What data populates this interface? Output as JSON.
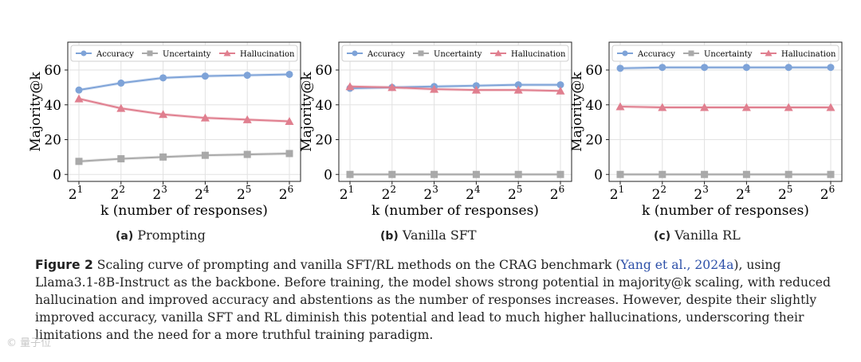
{
  "chart_data": [
    {
      "type": "line",
      "subcaption_tag": "(a)",
      "subcaption_text": "Prompting",
      "ylabel": "Majority@k",
      "xlabel": "k (number of responses)",
      "x_ticks": [
        "1",
        "2",
        "3",
        "4",
        "5",
        "6"
      ],
      "x_base": "2",
      "yticks": [
        0,
        20,
        40,
        60
      ],
      "ylim": [
        -4,
        76
      ],
      "grid": true,
      "legend_position": "top",
      "series": [
        {
          "name": "Accuracy",
          "color": "#7ea3d8",
          "marker": "circle",
          "values": [
            48.5,
            52.5,
            55.5,
            56.5,
            57,
            57.5
          ]
        },
        {
          "name": "Uncertainty",
          "color": "#a9a9a9",
          "marker": "square",
          "values": [
            7.5,
            9,
            10,
            11,
            11.5,
            12
          ]
        },
        {
          "name": "Hallucination",
          "color": "#e07f8f",
          "marker": "triangle",
          "values": [
            43.5,
            38,
            34.5,
            32.5,
            31.5,
            30.5
          ]
        }
      ]
    },
    {
      "type": "line",
      "subcaption_tag": "(b)",
      "subcaption_text": "Vanilla SFT",
      "ylabel": "Majority@k",
      "xlabel": "k (number of responses)",
      "x_ticks": [
        "1",
        "2",
        "3",
        "4",
        "5",
        "6"
      ],
      "x_base": "2",
      "yticks": [
        0,
        20,
        40,
        60
      ],
      "ylim": [
        -4,
        76
      ],
      "grid": true,
      "legend_position": "top",
      "series": [
        {
          "name": "Accuracy",
          "color": "#7ea3d8",
          "marker": "circle",
          "values": [
            49.5,
            50,
            50.5,
            51,
            51.5,
            51.5
          ]
        },
        {
          "name": "Uncertainty",
          "color": "#a9a9a9",
          "marker": "square",
          "values": [
            0,
            0,
            0,
            0,
            0,
            0
          ]
        },
        {
          "name": "Hallucination",
          "color": "#e07f8f",
          "marker": "triangle",
          "values": [
            50.5,
            50,
            49,
            48.5,
            48.5,
            48
          ]
        }
      ]
    },
    {
      "type": "line",
      "subcaption_tag": "(c)",
      "subcaption_text": "Vanilla RL",
      "ylabel": "Majority@k",
      "xlabel": "k (number of responses)",
      "x_ticks": [
        "1",
        "2",
        "3",
        "4",
        "5",
        "6"
      ],
      "x_base": "2",
      "yticks": [
        0,
        20,
        40,
        60
      ],
      "ylim": [
        -4,
        76
      ],
      "grid": true,
      "legend_position": "top",
      "series": [
        {
          "name": "Accuracy",
          "color": "#7ea3d8",
          "marker": "circle",
          "values": [
            61,
            61.5,
            61.5,
            61.5,
            61.5,
            61.5
          ]
        },
        {
          "name": "Uncertainty",
          "color": "#a9a9a9",
          "marker": "square",
          "values": [
            0,
            0,
            0,
            0,
            0,
            0
          ]
        },
        {
          "name": "Hallucination",
          "color": "#e07f8f",
          "marker": "triangle",
          "values": [
            39,
            38.5,
            38.5,
            38.5,
            38.5,
            38.5
          ]
        }
      ]
    }
  ],
  "caption": {
    "label": "Figure 2",
    "text_before_cite": "Scaling curve of prompting and vanilla SFT/RL methods on the CRAG benchmark (",
    "cite": "Yang et al., 2024a",
    "text_after_cite": "), using Llama3.1-8B-Instruct as the backbone. Before training, the model shows strong potential in majority@k scaling, with reduced hallucination and improved accuracy and abstentions as the number of responses increases. However, despite their slightly improved accuracy, vanilla SFT and RL diminish this potential and lead to much higher hallucinations, underscoring their limitations and the need for a more truthful training paradigm."
  },
  "watermark": "© 量子位"
}
